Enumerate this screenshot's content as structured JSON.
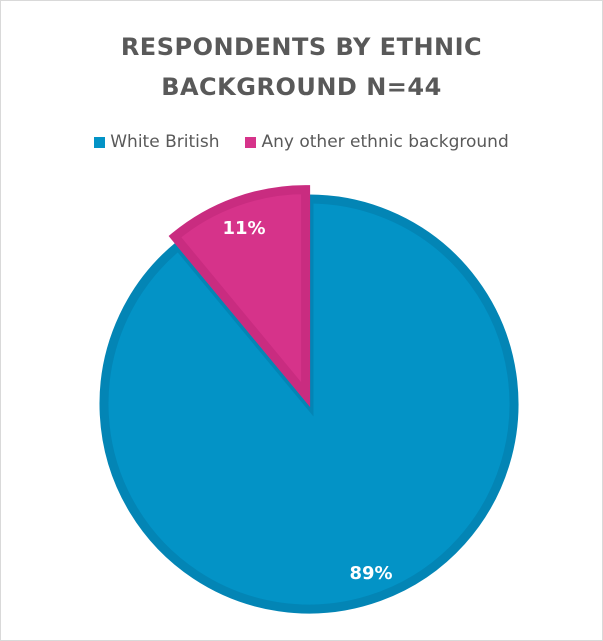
{
  "chart_data": {
    "type": "pie",
    "title": "RESPONDENTS BY ETHNIC\nBACKGROUND N=44",
    "categories": [
      "White British",
      "Any other ethnic background"
    ],
    "values": [
      89,
      11
    ],
    "labels": [
      "89%",
      "11%"
    ],
    "colors": [
      "#0393c6",
      "#d6338a"
    ],
    "border_colors": [
      "#0385b5",
      "#c92c80"
    ],
    "legend_position": "top"
  }
}
